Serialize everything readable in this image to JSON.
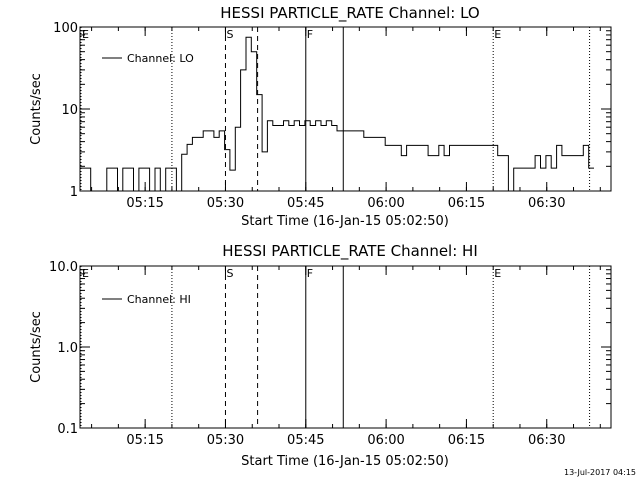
{
  "footer": {
    "timestamp": "13-Jul-2017 04:15"
  },
  "chart_data": [
    {
      "type": "line",
      "title": "HESSI PARTICLE_RATE Channel: LO",
      "xlabel": "Start Time (16-Jan-15 05:02:50)",
      "ylabel": "Counts/sec",
      "y_scale": "log",
      "ylim": [
        1,
        100
      ],
      "x_ticks": [
        "05:15",
        "05:30",
        "05:45",
        "06:00",
        "06:15",
        "06:30"
      ],
      "y_ticks": [
        "1",
        "10",
        "100"
      ],
      "legend": {
        "label": "Channel: LO",
        "position": "top-left"
      },
      "markers": [
        {
          "label": "E",
          "time": "05:02:50",
          "style": "dotted"
        },
        {
          "label": "",
          "time": "05:20",
          "style": "dotted"
        },
        {
          "label": "S",
          "time": "05:30",
          "style": "dashed"
        },
        {
          "label": "",
          "time": "05:36",
          "style": "dashed"
        },
        {
          "label": "F",
          "time": "05:45",
          "style": "solid"
        },
        {
          "label": "",
          "time": "05:52",
          "style": "solid"
        },
        {
          "label": "E",
          "time": "06:20",
          "style": "dotted"
        },
        {
          "label": "",
          "time": "06:38",
          "style": "dotted"
        }
      ],
      "series": [
        {
          "name": "Channel: LO",
          "x_minutes": [
            0,
            1,
            2,
            4,
            5,
            6,
            7,
            8,
            9,
            10,
            11,
            12,
            13,
            14,
            15,
            16,
            17,
            18,
            19,
            20,
            21,
            22,
            23,
            24,
            25,
            26,
            27,
            28,
            29,
            30,
            31,
            32,
            33,
            34,
            35,
            36,
            37,
            38,
            39,
            40,
            41,
            42,
            43,
            44,
            45,
            46,
            47,
            48,
            49,
            50,
            51,
            52,
            53,
            54,
            55,
            56,
            57,
            58,
            59,
            60,
            61,
            62,
            63,
            64,
            65,
            66,
            67,
            68,
            69,
            70,
            71,
            72,
            73,
            74,
            75,
            76,
            77,
            78,
            79,
            80,
            81,
            82,
            83,
            84,
            85,
            86,
            87,
            88,
            89,
            90,
            91,
            92,
            93,
            94,
            95,
            96
          ],
          "x_times": [
            "05:02:50",
            "05:03:50",
            "05:04:50",
            "05:06:50",
            "05:07:50",
            "05:08:50",
            "05:09:50",
            "05:10:50",
            "05:11:50",
            "05:12:50",
            "05:13:50",
            "05:14:50",
            "05:15:50",
            "05:16:50",
            "05:17:50",
            "05:18:50",
            "05:19:50",
            "05:20:50",
            "05:21:50",
            "05:22:50",
            "05:23:50",
            "05:24:50",
            "05:25:50",
            "05:26:50",
            "05:27:50",
            "05:28:50",
            "05:29:50",
            "05:30:50",
            "05:31:50",
            "05:32:50",
            "05:33:50",
            "05:34:50",
            "05:35:50",
            "05:36:50",
            "05:37:50",
            "05:38:50",
            "05:39:50",
            "05:40:50",
            "05:41:50",
            "05:42:50",
            "05:43:50",
            "05:44:50",
            "05:45:50",
            "05:46:50",
            "05:47:50",
            "05:48:50",
            "05:49:50",
            "05:50:50",
            "05:51:50",
            "05:52:50",
            "05:53:50",
            "05:54:50",
            "05:55:50",
            "05:56:50",
            "05:57:50",
            "05:58:50",
            "05:59:50",
            "06:00:50",
            "06:01:50",
            "06:02:50",
            "06:03:50",
            "06:04:50",
            "06:05:50",
            "06:06:50",
            "06:07:50",
            "06:08:50",
            "06:09:50",
            "06:10:50",
            "06:11:50",
            "06:12:50",
            "06:13:50",
            "06:14:50",
            "06:15:50",
            "06:16:50",
            "06:17:50",
            "06:18:50",
            "06:19:50",
            "06:20:50",
            "06:21:50",
            "06:22:50",
            "06:23:50",
            "06:24:50",
            "06:25:50",
            "06:26:50",
            "06:27:50",
            "06:28:50",
            "06:29:50",
            "06:30:50",
            "06:31:50",
            "06:32:50",
            "06:33:50",
            "06:34:50",
            "06:35:50",
            "06:36:50",
            "06:37:50",
            "06:38:50"
          ],
          "values": [
            1.9,
            1.9,
            1,
            1,
            1.9,
            1.9,
            1,
            1.9,
            1.9,
            1,
            1.9,
            1.9,
            1,
            1.9,
            1,
            1.9,
            1.9,
            1,
            2.8,
            3.7,
            4.5,
            4.5,
            5.4,
            5.4,
            4.5,
            5.4,
            3.2,
            1.8,
            6,
            30,
            75,
            50,
            15,
            3,
            7.2,
            6.3,
            6.3,
            7.2,
            6.3,
            7.2,
            6.3,
            7.2,
            6.3,
            7.2,
            6.3,
            7.2,
            6.3,
            5.4,
            5.4,
            5.4,
            5.4,
            5.4,
            4.5,
            4.5,
            4.5,
            4.5,
            3.6,
            3.6,
            3.6,
            2.7,
            3.6,
            3.6,
            3.6,
            3.6,
            2.7,
            2.7,
            3.6,
            2.7,
            3.6,
            3.6,
            3.6,
            3.6,
            3.6,
            3.6,
            3.6,
            3.6,
            3.6,
            2.7,
            2.7,
            1,
            1.9,
            1.9,
            1.9,
            1.9,
            2.7,
            1.9,
            2.7,
            1.9,
            3.6,
            2.7,
            2.7,
            2.7,
            2.7,
            3.6,
            1.9,
            1.9
          ]
        }
      ]
    },
    {
      "type": "line",
      "title": "HESSI PARTICLE_RATE Channel: HI",
      "xlabel": "Start Time (16-Jan-15 05:02:50)",
      "ylabel": "Counts/sec",
      "y_scale": "log",
      "ylim": [
        0.1,
        10
      ],
      "x_ticks": [
        "05:15",
        "05:30",
        "05:45",
        "06:00",
        "06:15",
        "06:30"
      ],
      "y_ticks": [
        "0.1",
        "1.0",
        "10.0"
      ],
      "legend": {
        "label": "Channel: HI",
        "position": "top-left"
      },
      "markers": [
        {
          "label": "E",
          "time": "05:02:50",
          "style": "dotted"
        },
        {
          "label": "",
          "time": "05:20",
          "style": "dotted"
        },
        {
          "label": "S",
          "time": "05:30",
          "style": "dashed"
        },
        {
          "label": "",
          "time": "05:36",
          "style": "dashed"
        },
        {
          "label": "F",
          "time": "05:45",
          "style": "solid"
        },
        {
          "label": "",
          "time": "05:52",
          "style": "solid"
        },
        {
          "label": "E",
          "time": "06:20",
          "style": "dotted"
        },
        {
          "label": "",
          "time": "06:38",
          "style": "dotted"
        }
      ],
      "series": [
        {
          "name": "Channel: HI",
          "x_minutes": [],
          "x_times": [],
          "values": []
        }
      ]
    }
  ]
}
